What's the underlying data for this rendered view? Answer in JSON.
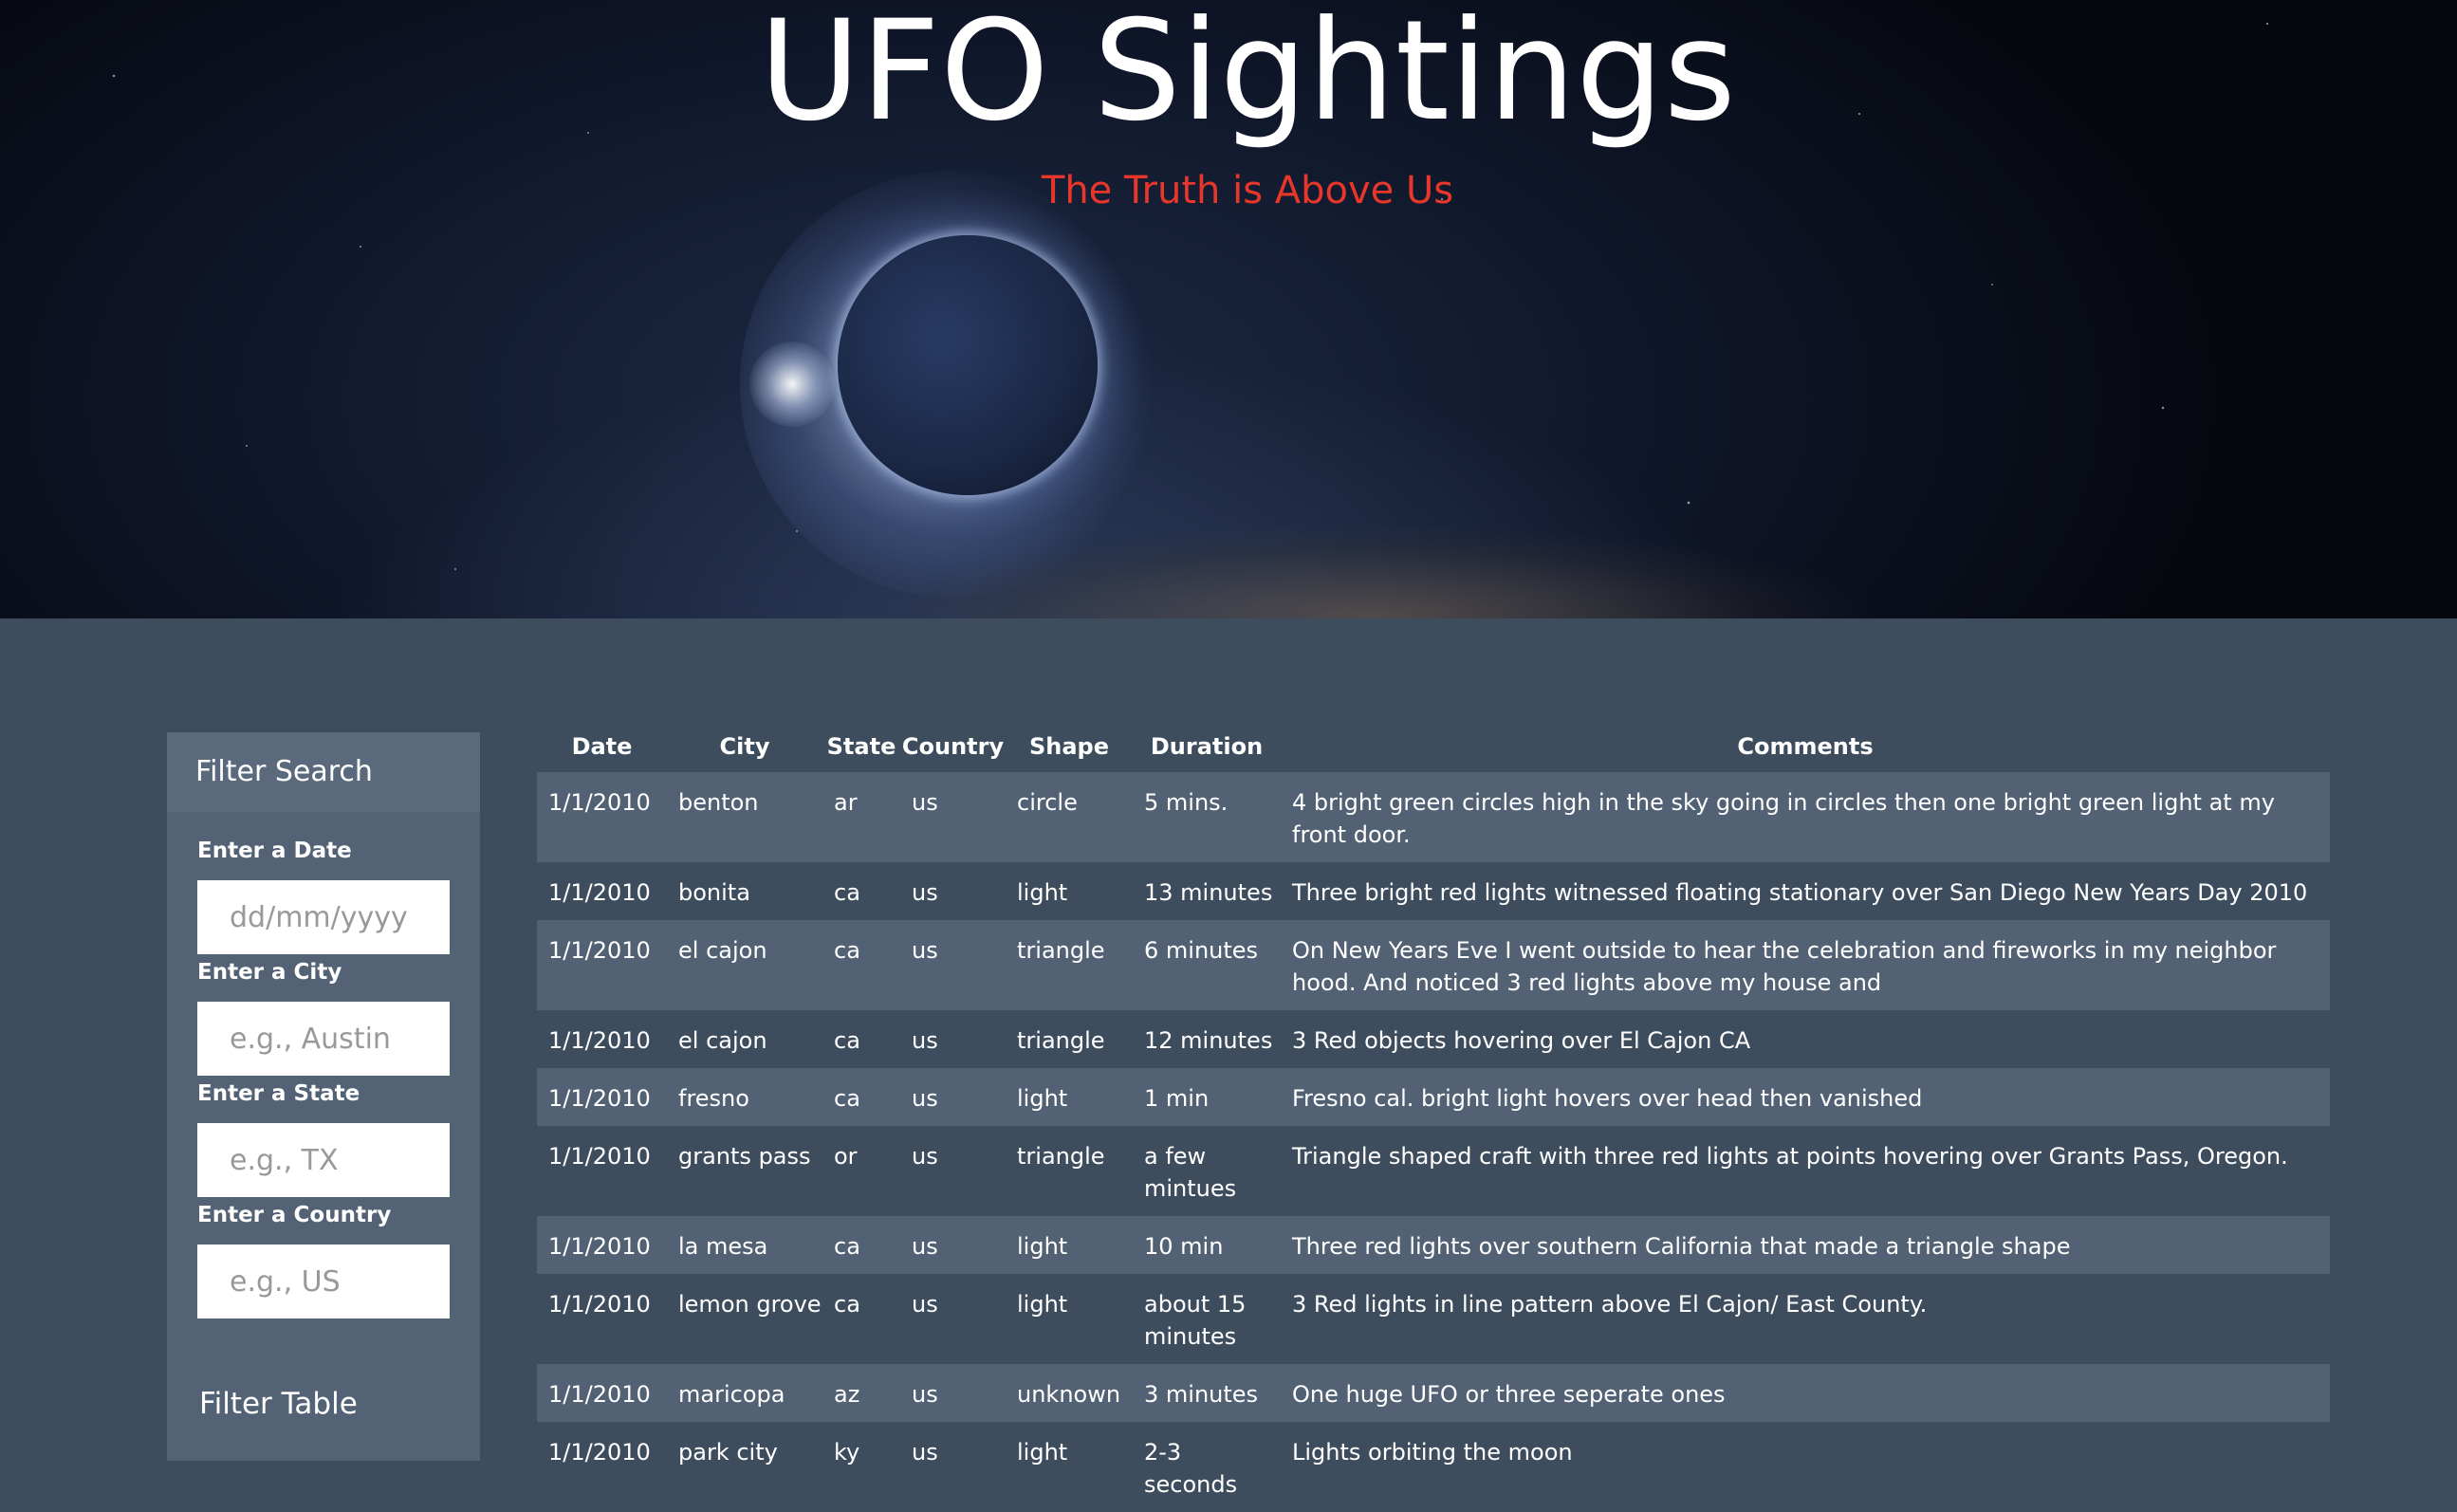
{
  "header": {
    "title": "UFO Sightings",
    "subtitle": "The Truth is Above Us"
  },
  "sidebar": {
    "title": "Filter Search",
    "fields": [
      {
        "label": "Enter a Date",
        "placeholder": "dd/mm/yyyy"
      },
      {
        "label": "Enter a City",
        "placeholder": "e.g., Austin"
      },
      {
        "label": "Enter a State",
        "placeholder": "e.g., TX"
      },
      {
        "label": "Enter a Country",
        "placeholder": "e.g., US"
      }
    ],
    "filter_button": "Filter Table"
  },
  "table": {
    "columns": [
      "Date",
      "City",
      "State",
      "Country",
      "Shape",
      "Duration",
      "Comments"
    ],
    "rows": [
      [
        "1/1/2010",
        "benton",
        "ar",
        "us",
        "circle",
        "5 mins.",
        "4 bright green circles high in the sky going in circles then one bright green light at my front door."
      ],
      [
        "1/1/2010",
        "bonita",
        "ca",
        "us",
        "light",
        "13 minutes",
        "Three bright red lights witnessed floating stationary over San Diego New Years Day 2010"
      ],
      [
        "1/1/2010",
        "el cajon",
        "ca",
        "us",
        "triangle",
        "6 minutes",
        "On New Years Eve I went outside to hear the celebration and fireworks in my neighbor hood. And noticed 3 red lights above my house and"
      ],
      [
        "1/1/2010",
        "el cajon",
        "ca",
        "us",
        "triangle",
        "12 minutes",
        "3 Red objects hovering over El Cajon CA"
      ],
      [
        "1/1/2010",
        "fresno",
        "ca",
        "us",
        "light",
        "1 min",
        "Fresno cal. bright light hovers over head then vanished"
      ],
      [
        "1/1/2010",
        "grants pass",
        "or",
        "us",
        "triangle",
        "a few mintues",
        "Triangle shaped craft with three red lights at points hovering over Grants Pass, Oregon."
      ],
      [
        "1/1/2010",
        "la mesa",
        "ca",
        "us",
        "light",
        "10 min",
        "Three red lights over southern California that made a triangle shape"
      ],
      [
        "1/1/2010",
        "lemon grove",
        "ca",
        "us",
        "light",
        "about 15 minutes",
        "3 Red lights in line pattern above El Cajon/ East County."
      ],
      [
        "1/1/2010",
        "maricopa",
        "az",
        "us",
        "unknown",
        "3 minutes",
        "One huge UFO or three seperate ones"
      ],
      [
        "1/1/2010",
        "park city",
        "ky",
        "us",
        "light",
        "2-3 seconds",
        "Lights orbiting the moon"
      ]
    ]
  }
}
